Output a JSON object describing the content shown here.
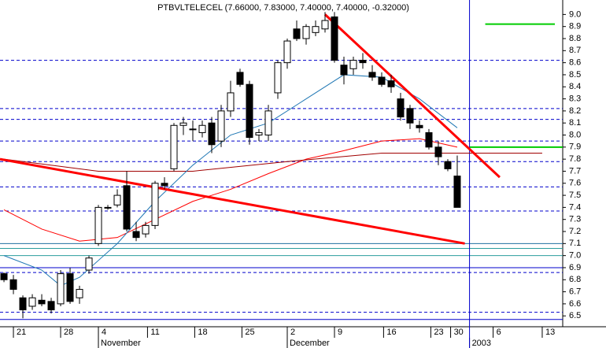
{
  "chart_data": {
    "type": "candlestick",
    "title": "PTBVLTELECEL (7.66000, 7.83000, 7.40000, 7.40000, -0.32000)",
    "xlim": [
      -0.42,
      59.17
    ],
    "ylim": [
      6.41,
      9.12
    ],
    "xticks": [
      {
        "value": 1,
        "label": "21"
      },
      {
        "value": 6,
        "label": "28"
      },
      {
        "value": 10,
        "label": "4"
      },
      {
        "value": 15.2,
        "label": "11"
      },
      {
        "value": 20.2,
        "label": "18"
      },
      {
        "value": 25.2,
        "label": "25"
      },
      {
        "value": 30,
        "label": "2"
      },
      {
        "value": 35,
        "label": "9"
      },
      {
        "value": 40.2,
        "label": "16"
      },
      {
        "value": 45.2,
        "label": "23"
      },
      {
        "value": 47.3,
        "label": "30"
      },
      {
        "value": 51.8,
        "label": "6"
      },
      {
        "value": 57,
        "label": "13"
      }
    ],
    "months": [
      {
        "value": 10,
        "label": "November"
      },
      {
        "value": 30,
        "label": "December"
      },
      {
        "value": 49.3,
        "label": "2003"
      }
    ],
    "yticks": [
      6.5,
      6.6,
      6.7,
      6.8,
      6.9,
      {
        "value": 7,
        "label": "7.0"
      },
      7.1,
      7.2,
      7.3,
      7.4,
      7.5,
      7.6,
      7.7,
      7.8,
      7.9,
      {
        "value": 8,
        "label": "8.0"
      },
      8.1,
      8.2,
      8.3,
      8.4,
      8.5,
      8.6,
      8.7,
      8.8,
      8.9,
      {
        "value": 9,
        "label": "9.0"
      }
    ],
    "x": [
      0,
      1,
      2,
      3,
      4,
      5,
      6,
      7,
      8,
      9,
      10,
      11,
      12,
      13,
      14,
      15,
      16,
      17,
      18,
      19,
      20,
      21,
      22,
      23,
      24,
      25,
      26,
      27,
      28,
      29,
      30,
      31,
      32,
      33,
      34,
      35,
      36,
      37,
      38,
      39,
      40,
      41,
      42,
      43,
      44,
      45,
      46,
      47,
      48
    ],
    "open": [
      6.85,
      6.8,
      6.65,
      6.58,
      6.63,
      6.62,
      6.6,
      6.85,
      6.65,
      6.88,
      7.1,
      7.4,
      7.42,
      7.58,
      7.2,
      7.18,
      7.25,
      7.6,
      7.72,
      8.08,
      8.05,
      8.02,
      8.1,
      7.95,
      8.2,
      8.52,
      8.42,
      8.0,
      8.0,
      8.35,
      8.6,
      8.88,
      8.8,
      8.85,
      8.88,
      8.98,
      8.58,
      8.55,
      8.62,
      8.52,
      8.48,
      8.45,
      8.3,
      8.22,
      8.08,
      8.02,
      7.9,
      7.78,
      7.66
    ],
    "high": [
      6.86,
      6.84,
      6.67,
      6.68,
      6.68,
      6.65,
      6.88,
      6.9,
      6.75,
      7.0,
      7.42,
      7.42,
      7.55,
      7.7,
      7.28,
      7.28,
      7.62,
      7.65,
      8.1,
      8.15,
      8.12,
      8.12,
      8.15,
      8.25,
      8.45,
      8.55,
      8.45,
      8.05,
      8.25,
      8.62,
      8.8,
      8.95,
      8.92,
      8.95,
      9.02,
      9.02,
      8.65,
      8.65,
      8.68,
      8.58,
      8.52,
      8.5,
      8.35,
      8.25,
      8.12,
      8.05,
      7.95,
      7.8,
      7.83
    ],
    "low": [
      6.78,
      6.68,
      6.48,
      6.55,
      6.58,
      6.52,
      6.58,
      6.6,
      6.6,
      6.85,
      7.08,
      7.38,
      7.4,
      7.2,
      7.12,
      7.15,
      7.22,
      7.55,
      7.7,
      8.0,
      7.95,
      7.98,
      7.85,
      7.9,
      8.15,
      8.4,
      7.92,
      7.95,
      7.95,
      8.3,
      8.55,
      8.78,
      8.75,
      8.82,
      8.85,
      8.6,
      8.42,
      8.5,
      8.55,
      8.45,
      8.4,
      8.35,
      8.12,
      8.05,
      8.02,
      7.88,
      7.75,
      7.7,
      7.4
    ],
    "close": [
      6.8,
      6.72,
      6.55,
      6.65,
      6.6,
      6.55,
      6.85,
      6.62,
      6.72,
      6.98,
      7.4,
      7.4,
      7.5,
      7.22,
      7.15,
      7.25,
      7.6,
      7.58,
      8.08,
      8.1,
      8.05,
      8.08,
      7.92,
      8.2,
      8.35,
      8.42,
      7.98,
      8.02,
      8.2,
      8.6,
      8.78,
      8.8,
      8.9,
      8.9,
      8.95,
      8.62,
      8.5,
      8.62,
      8.6,
      8.48,
      8.42,
      8.4,
      8.15,
      8.1,
      8.06,
      7.9,
      7.82,
      7.72,
      7.4
    ],
    "lines": [
      {
        "color": "#ff0000",
        "width": 1,
        "x": [
          0,
          4,
          8,
          12,
          16,
          20,
          24,
          28,
          32,
          36,
          40,
          44,
          48
        ],
        "values": [
          7.38,
          7.22,
          7.12,
          7.15,
          7.3,
          7.45,
          7.55,
          7.68,
          7.8,
          7.87,
          7.95,
          7.97,
          7.9
        ]
      },
      {
        "color": "#a00000",
        "width": 1,
        "x": [
          0,
          10,
          20,
          30,
          40,
          48,
          57
        ],
        "values": [
          7.8,
          7.7,
          7.7,
          7.78,
          7.85,
          7.85,
          7.85
        ]
      },
      {
        "color": "#1f77b4",
        "width": 1,
        "x": [
          0,
          4,
          6,
          8,
          12,
          16,
          20,
          24,
          28,
          32,
          36,
          40,
          44,
          48
        ],
        "values": [
          7.0,
          6.88,
          6.75,
          6.82,
          7.1,
          7.45,
          7.75,
          8.0,
          8.1,
          8.3,
          8.5,
          8.48,
          8.3,
          8.06
        ]
      },
      {
        "color": "#ff0000",
        "width": 3,
        "x": [
          -0.42,
          48.8
        ],
        "values": [
          7.8,
          7.1
        ]
      },
      {
        "color": "#ff0000",
        "width": 3,
        "x": [
          34,
          52.5
        ],
        "values": [
          9.0,
          7.65
        ]
      }
    ],
    "dashed_levels": [
      8.62,
      8.22,
      8.13,
      7.95,
      7.78,
      7.57,
      7.37,
      6.86,
      6.53
    ],
    "solid_levels": [
      {
        "value": 7.1,
        "color": "#1f6fa0"
      },
      {
        "value": 7.06,
        "color": "#2a9d9d"
      },
      {
        "value": 7.0,
        "color": "#2a9d9d"
      },
      {
        "value": 6.9,
        "color": "#0000cc"
      },
      {
        "value": 6.47,
        "color": "#0000cc"
      }
    ],
    "green_levels": [
      8.92,
      7.9
    ],
    "marker_x": 49.3
  }
}
